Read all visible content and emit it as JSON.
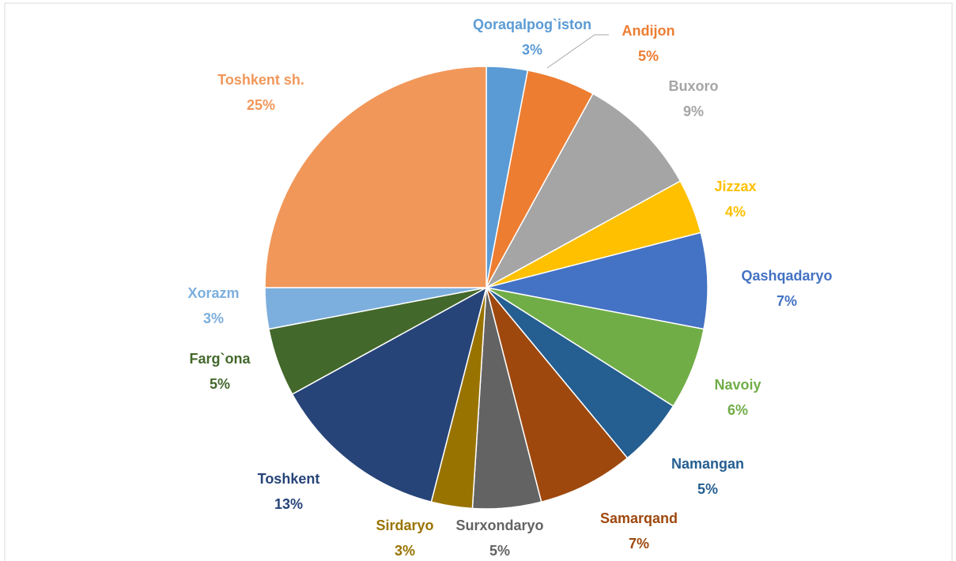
{
  "chart_data": {
    "type": "pie",
    "categories": [
      "Qoraqalpog`iston",
      "Andijon",
      "Buxoro",
      "Jizzax",
      "Qashqadaryo",
      "Navoiy",
      "Namangan",
      "Samarqand",
      "Surxondaryo",
      "Sirdaryo",
      "Toshkent",
      "Farg`ona",
      "Xorazm",
      "Toshkent sh."
    ],
    "values": [
      3,
      5,
      9,
      4,
      7,
      6,
      5,
      7,
      5,
      3,
      13,
      5,
      3,
      25
    ],
    "value_labels": [
      "3%",
      "5%",
      "9%",
      "4%",
      "7%",
      "6%",
      "5%",
      "7%",
      "5%",
      "3%",
      "13%",
      "5%",
      "3%",
      "25%"
    ],
    "colors": [
      "#5b9bd5",
      "#ed7d31",
      "#a5a5a5",
      "#ffc000",
      "#4472c4",
      "#70ad47",
      "#255e91",
      "#9e480e",
      "#636363",
      "#997300",
      "#264478",
      "#43682b",
      "#7cafdd",
      "#f1975a"
    ]
  }
}
